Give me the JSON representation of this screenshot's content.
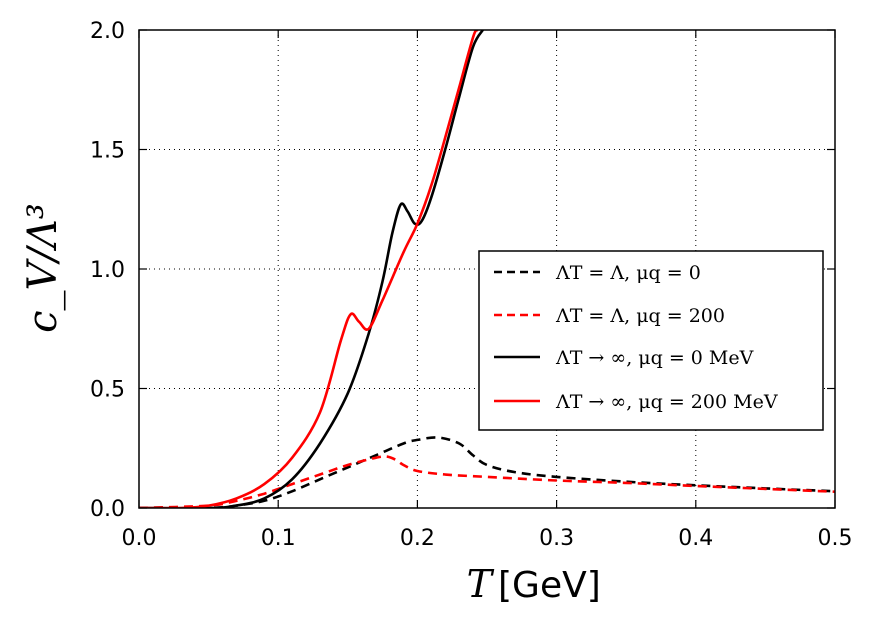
{
  "chart_data": {
    "type": "line",
    "xlabel": "T",
    "xlabel_unit": "[GeV]",
    "ylabel": "c_V/Λ³",
    "xlim": [
      0.0,
      0.5
    ],
    "ylim": [
      0.0,
      2.0
    ],
    "x_ticks": [
      "0.0",
      "0.1",
      "0.2",
      "0.3",
      "0.4",
      "0.5"
    ],
    "y_ticks": [
      "0.0",
      "0.5",
      "1.0",
      "1.5",
      "2.0"
    ],
    "grid": true,
    "legend_position": "center-right",
    "series": [
      {
        "name": "ΛT = Λ, μq = 0",
        "color": "#000000",
        "style": "dashed",
        "x": [
          0.0,
          0.05,
          0.07,
          0.09,
          0.11,
          0.13,
          0.15,
          0.17,
          0.19,
          0.2,
          0.215,
          0.23,
          0.24,
          0.25,
          0.27,
          0.3,
          0.35,
          0.4,
          0.45,
          0.5
        ],
        "y": [
          0.0,
          0.0,
          0.01,
          0.03,
          0.07,
          0.12,
          0.17,
          0.22,
          0.27,
          0.285,
          0.295,
          0.27,
          0.22,
          0.18,
          0.15,
          0.13,
          0.11,
          0.095,
          0.082,
          0.07
        ]
      },
      {
        "name": "ΛT = Λ, μq = 200",
        "color": "#ff0000",
        "style": "dashed",
        "x": [
          0.0,
          0.05,
          0.07,
          0.09,
          0.11,
          0.13,
          0.15,
          0.17,
          0.178,
          0.185,
          0.19,
          0.2,
          0.22,
          0.25,
          0.3,
          0.35,
          0.4,
          0.45,
          0.5
        ],
        "y": [
          0.0,
          0.01,
          0.03,
          0.06,
          0.1,
          0.14,
          0.18,
          0.21,
          0.215,
          0.2,
          0.18,
          0.155,
          0.14,
          0.13,
          0.115,
          0.105,
          0.092,
          0.08,
          0.068
        ]
      },
      {
        "name": "ΛT → ∞, μq = 0 MeV",
        "color": "#000000",
        "style": "solid",
        "x": [
          0.0,
          0.05,
          0.07,
          0.09,
          0.11,
          0.13,
          0.15,
          0.165,
          0.175,
          0.182,
          0.188,
          0.193,
          0.198,
          0.203,
          0.21,
          0.22,
          0.23,
          0.24,
          0.247
        ],
        "y": [
          0.0,
          0.0,
          0.01,
          0.04,
          0.12,
          0.27,
          0.48,
          0.73,
          0.95,
          1.15,
          1.27,
          1.24,
          1.19,
          1.2,
          1.3,
          1.5,
          1.72,
          1.93,
          2.0
        ]
      },
      {
        "name": "ΛT → ∞, μq = 200 MeV",
        "color": "#ff0000",
        "style": "solid",
        "x": [
          0.0,
          0.03,
          0.05,
          0.07,
          0.09,
          0.11,
          0.13,
          0.145,
          0.152,
          0.158,
          0.165,
          0.175,
          0.19,
          0.2,
          0.21,
          0.22,
          0.23,
          0.24,
          0.243
        ],
        "y": [
          0.0,
          0.0,
          0.01,
          0.04,
          0.1,
          0.21,
          0.4,
          0.7,
          0.81,
          0.78,
          0.75,
          0.87,
          1.07,
          1.19,
          1.35,
          1.55,
          1.76,
          1.97,
          2.0
        ]
      }
    ]
  },
  "legend_labels": {
    "item1": "ΛT = Λ, μq = 0",
    "item2": "ΛT = Λ, μq = 200",
    "item3": "ΛT → ∞, μq = 0 MeV",
    "item4": "ΛT → ∞, μq = 200 MeV"
  }
}
